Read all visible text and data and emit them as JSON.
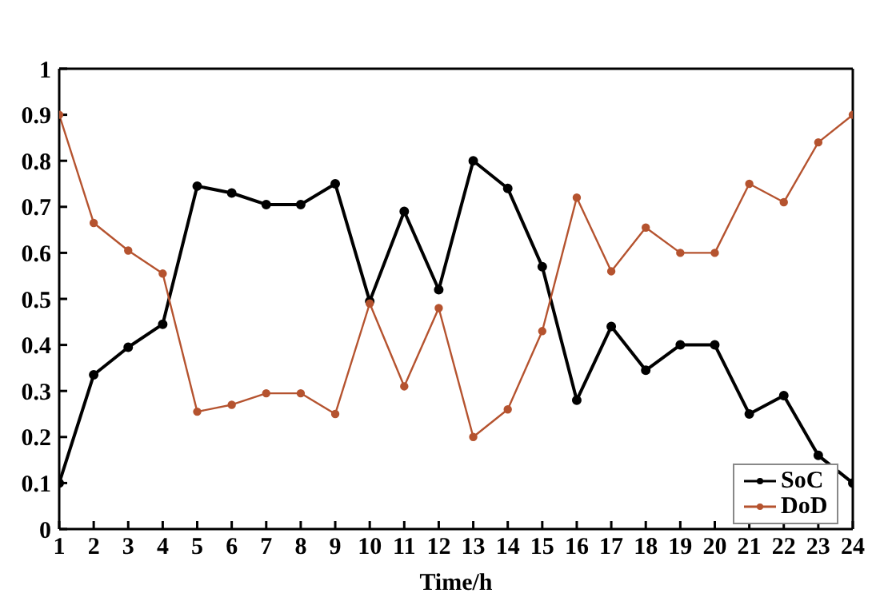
{
  "chart_data": {
    "type": "line",
    "xlabel": "Time/h",
    "x": [
      1,
      2,
      3,
      4,
      5,
      6,
      7,
      8,
      9,
      10,
      11,
      12,
      13,
      14,
      15,
      16,
      17,
      18,
      19,
      20,
      21,
      22,
      23,
      24
    ],
    "series": [
      {
        "name": "SoC",
        "color": "#000000",
        "values": [
          0.1,
          0.335,
          0.395,
          0.445,
          0.745,
          0.73,
          0.705,
          0.705,
          0.75,
          0.495,
          0.69,
          0.52,
          0.8,
          0.74,
          0.57,
          0.28,
          0.44,
          0.345,
          0.4,
          0.4,
          0.25,
          0.29,
          0.16,
          0.1
        ]
      },
      {
        "name": "DoD",
        "color": "#b5532f",
        "values": [
          0.9,
          0.665,
          0.605,
          0.555,
          0.255,
          0.27,
          0.295,
          0.295,
          0.25,
          0.49,
          0.31,
          0.48,
          0.2,
          0.26,
          0.43,
          0.72,
          0.56,
          0.655,
          0.6,
          0.6,
          0.75,
          0.71,
          0.84,
          0.9
        ]
      }
    ],
    "xlim": [
      1,
      24
    ],
    "xticks": [
      1,
      2,
      3,
      4,
      5,
      6,
      7,
      8,
      9,
      10,
      11,
      12,
      13,
      14,
      15,
      16,
      17,
      18,
      19,
      20,
      21,
      22,
      23,
      24
    ],
    "ylim": [
      0,
      1
    ],
    "yticks": [
      0,
      0.1,
      0.2,
      0.3,
      0.4,
      0.5,
      0.6,
      0.7,
      0.8,
      0.9,
      1
    ],
    "grid": false,
    "legend": "bottom right",
    "marker": "circle",
    "line_style": "solid"
  }
}
